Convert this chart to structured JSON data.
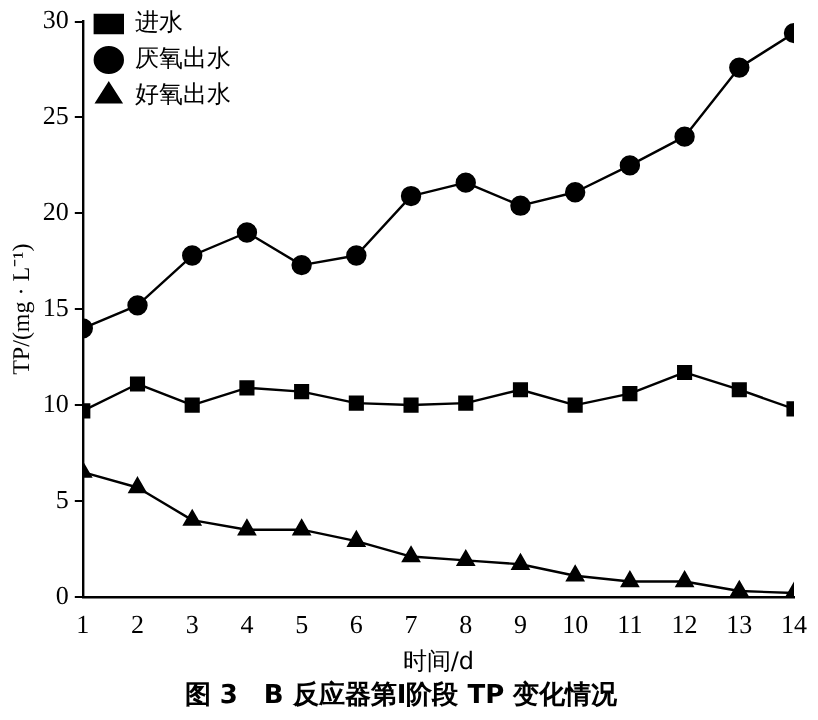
{
  "chart_data": {
    "type": "line",
    "title": "图 3　B 反应器第Ⅰ阶段 TP 变化情况",
    "xlabel": "时间/d",
    "ylabel": "TP/(mg · L⁻¹)",
    "x": [
      1,
      2,
      3,
      4,
      5,
      6,
      7,
      8,
      9,
      10,
      11,
      12,
      13,
      14
    ],
    "series": [
      {
        "name": "进水",
        "color": "#000000",
        "marker": "square",
        "values": [
          9.7,
          11.1,
          10.0,
          10.9,
          10.7,
          10.1,
          10.0,
          10.1,
          10.8,
          10.0,
          10.6,
          11.7,
          10.8,
          9.8
        ]
      },
      {
        "name": "厌氧出水",
        "color": "#000000",
        "marker": "circle",
        "values": [
          14.0,
          15.2,
          17.8,
          19.0,
          17.3,
          17.8,
          20.9,
          21.6,
          20.4,
          21.1,
          22.5,
          24.0,
          27.6,
          29.4
        ]
      },
      {
        "name": "好氧出水",
        "color": "#000000",
        "marker": "triangle",
        "values": [
          6.5,
          5.7,
          4.0,
          3.5,
          3.5,
          2.9,
          2.1,
          1.9,
          1.7,
          1.1,
          0.8,
          0.8,
          0.3,
          0.2
        ]
      }
    ],
    "xlim": [
      1,
      14
    ],
    "xticks": [
      1,
      2,
      3,
      4,
      5,
      6,
      7,
      8,
      9,
      10,
      11,
      12,
      13,
      14
    ],
    "ylim": [
      0,
      30
    ],
    "yticks": [
      0,
      5,
      10,
      15,
      20,
      25,
      30
    ],
    "grid": false,
    "legend": "top left",
    "line_style": "solid"
  }
}
